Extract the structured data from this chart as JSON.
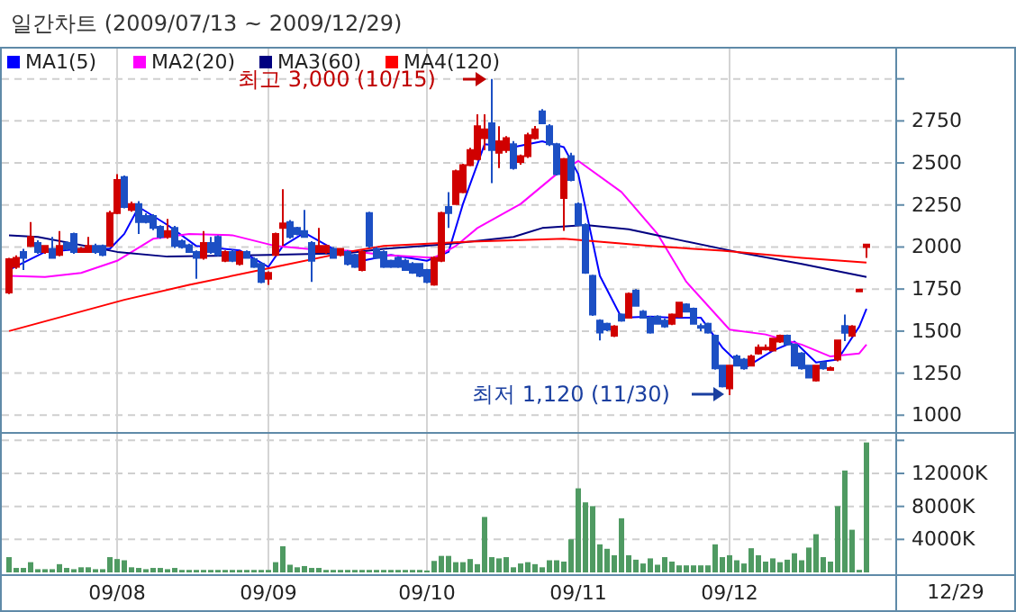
{
  "chart_data": [
    {
      "type": "candlestick",
      "title": "일간차트 (2009/07/13 ~ 2009/12/29)",
      "categories": [
        null,
        null,
        null,
        null,
        null,
        null,
        null,
        null,
        null,
        null,
        null,
        null,
        null,
        null,
        null,
        null,
        null,
        null,
        null,
        null,
        null,
        null,
        null,
        null,
        null,
        null,
        null,
        null,
        null,
        null,
        null,
        null,
        null,
        null,
        null,
        null,
        null,
        null,
        null,
        null,
        null,
        null,
        null,
        null,
        null,
        null,
        null,
        null,
        null,
        null,
        null,
        null,
        null,
        null,
        null,
        null,
        null,
        null,
        null,
        null,
        null,
        null,
        null,
        null,
        null,
        null,
        null,
        null,
        null,
        null,
        null,
        null,
        null,
        null,
        null,
        null,
        null,
        null,
        null,
        null,
        null,
        null,
        null,
        null,
        null,
        null,
        null,
        null,
        null,
        null,
        null,
        null,
        null,
        null,
        null,
        null,
        null,
        null,
        null,
        null,
        null,
        null,
        null,
        null,
        null,
        null,
        null,
        null,
        null,
        null,
        null,
        null,
        null,
        null,
        null,
        null,
        null,
        null,
        null,
        null
      ],
      "ohlc": [
        [
          1730,
          1935,
          1720,
          1928
        ],
        [
          1882,
          1950,
          1870,
          1935
        ],
        [
          1971,
          1989,
          1864,
          1935
        ],
        [
          2006,
          2149,
          2000,
          2060
        ],
        [
          2024,
          2040,
          1960,
          1971
        ],
        [
          1971,
          2010,
          1960,
          2006
        ],
        [
          1989,
          2060,
          1930,
          1935
        ],
        [
          1953,
          2095,
          1945,
          2006
        ],
        [
          2024,
          2035,
          1980,
          1989
        ],
        [
          2078,
          2085,
          1960,
          1971
        ],
        [
          1971,
          2000,
          1965,
          1989
        ],
        [
          1971,
          2060,
          1965,
          2006
        ],
        [
          2006,
          2020,
          1960,
          1971
        ],
        [
          2006,
          2015,
          1945,
          1953
        ],
        [
          2006,
          2215,
          2000,
          2202
        ],
        [
          2202,
          2433,
          2195,
          2398
        ],
        [
          2416,
          2425,
          2230,
          2238
        ],
        [
          2220,
          2270,
          2210,
          2255
        ],
        [
          2255,
          2273,
          2078,
          2149
        ],
        [
          2184,
          2200,
          2140,
          2149
        ],
        [
          2184,
          2195,
          2100,
          2113
        ],
        [
          2120,
          2130,
          2050,
          2060
        ],
        [
          2060,
          2167,
          2050,
          2095
        ],
        [
          2113,
          2125,
          1995,
          2006
        ],
        [
          2035,
          2045,
          1990,
          2000
        ],
        [
          2010,
          2020,
          1965,
          1971
        ],
        [
          1971,
          1980,
          1811,
          1935
        ],
        [
          1935,
          2095,
          1925,
          2024
        ],
        [
          2024,
          2060,
          1960,
          1971
        ],
        [
          2060,
          2070,
          1945,
          1953
        ],
        [
          1918,
          1980,
          1910,
          1971
        ],
        [
          1971,
          1985,
          1910,
          1918
        ],
        [
          1900,
          1980,
          1890,
          1971
        ],
        [
          1971,
          1980,
          1930,
          1935
        ],
        [
          1928,
          1940,
          1875,
          1882
        ],
        [
          1900,
          1910,
          1785,
          1793
        ],
        [
          1811,
          1855,
          1775,
          1846
        ],
        [
          1953,
          2085,
          1945,
          2078
        ],
        [
          2113,
          2344,
          2006,
          2140
        ],
        [
          2149,
          2160,
          2050,
          2060
        ],
        [
          2113,
          2120,
          2070,
          2078
        ],
        [
          2095,
          2220,
          2055,
          2060
        ],
        [
          2024,
          2035,
          1793,
          1918
        ],
        [
          1971,
          2113,
          1965,
          2006
        ],
        [
          1971,
          2015,
          1960,
          2006
        ],
        [
          1989,
          2000,
          1930,
          1935
        ],
        [
          1953,
          1995,
          1945,
          1989
        ],
        [
          1971,
          1980,
          1890,
          1900
        ],
        [
          1953,
          1960,
          1875,
          1882
        ],
        [
          1864,
          1980,
          1855,
          1971
        ],
        [
          2202,
          2210,
          1995,
          2006
        ],
        [
          1989,
          2000,
          1930,
          1936
        ],
        [
          1971,
          1980,
          1875,
          1882
        ],
        [
          1918,
          1925,
          1875,
          1882
        ],
        [
          1936,
          1945,
          1875,
          1882
        ],
        [
          1918,
          1930,
          1860,
          1864
        ],
        [
          1900,
          1910,
          1840,
          1847
        ],
        [
          1900,
          1905,
          1820,
          1829
        ],
        [
          1864,
          1870,
          1785,
          1793
        ],
        [
          1776,
          1945,
          1770,
          1936
        ],
        [
          1918,
          2210,
          1910,
          2202
        ],
        [
          2238,
          2327,
          2113,
          2202
        ],
        [
          2256,
          2460,
          2250,
          2451
        ],
        [
          2327,
          2495,
          2320,
          2487
        ],
        [
          2487,
          2590,
          2480,
          2576
        ],
        [
          2523,
          2789,
          2515,
          2718
        ],
        [
          2647,
          2789,
          2576,
          2700
        ],
        [
          2736,
          3000,
          2380,
          2576
        ],
        [
          2560,
          2718,
          2469,
          2629
        ],
        [
          2576,
          2660,
          2560,
          2647
        ],
        [
          2611,
          2630,
          2460,
          2469
        ],
        [
          2505,
          2550,
          2490,
          2540
        ],
        [
          2540,
          2680,
          2530,
          2665
        ],
        [
          2647,
          2720,
          2640,
          2700
        ],
        [
          2807,
          2820,
          2730,
          2736
        ],
        [
          2718,
          2730,
          2600,
          2611
        ],
        [
          2611,
          2620,
          2425,
          2434
        ],
        [
          2291,
          2530,
          2096,
          2523
        ],
        [
          2540,
          2560,
          2390,
          2398
        ],
        [
          2256,
          2265,
          2125,
          2131
        ],
        [
          2131,
          2140,
          1840,
          1847
        ],
        [
          1829,
          1835,
          1590,
          1598
        ],
        [
          1562,
          1570,
          1445,
          1491
        ],
        [
          1544,
          1550,
          1500,
          1509
        ],
        [
          1473,
          1535,
          1465,
          1527
        ],
        [
          1598,
          1605,
          1555,
          1562
        ],
        [
          1580,
          1730,
          1575,
          1722
        ],
        [
          1740,
          1750,
          1645,
          1651
        ],
        [
          1616,
          1625,
          1575,
          1580
        ],
        [
          1580,
          1590,
          1485,
          1491
        ],
        [
          1587,
          1595,
          1540,
          1544
        ],
        [
          1562,
          1575,
          1520,
          1527
        ],
        [
          1544,
          1605,
          1535,
          1598
        ],
        [
          1587,
          1675,
          1580,
          1669
        ],
        [
          1658,
          1665,
          1610,
          1616
        ],
        [
          1633,
          1640,
          1540,
          1544
        ],
        [
          1530,
          1545,
          1500,
          1522
        ],
        [
          1544,
          1550,
          1485,
          1491
        ],
        [
          1473,
          1480,
          1270,
          1278
        ],
        [
          1295,
          1300,
          1165,
          1171
        ],
        [
          1160,
          1300,
          1120,
          1295
        ],
        [
          1349,
          1360,
          1290,
          1295
        ],
        [
          1331,
          1340,
          1270,
          1278
        ],
        [
          1295,
          1360,
          1290,
          1349
        ],
        [
          1367,
          1420,
          1360,
          1402
        ],
        [
          1395,
          1420,
          1385,
          1402
        ],
        [
          1384,
          1460,
          1380,
          1455
        ],
        [
          1438,
          1480,
          1430,
          1473
        ],
        [
          1473,
          1480,
          1415,
          1420
        ],
        [
          1420,
          1425,
          1290,
          1295
        ],
        [
          1367,
          1375,
          1270,
          1278
        ],
        [
          1295,
          1300,
          1220,
          1224
        ],
        [
          1207,
          1300,
          1200,
          1295
        ],
        [
          1313,
          1320,
          1270,
          1278
        ],
        [
          1270,
          1290,
          1265,
          1280
        ],
        [
          1331,
          1450,
          1320,
          1445
        ],
        [
          1530,
          1598,
          1440,
          1490
        ],
        [
          1473,
          1535,
          1465,
          1527
        ],
        [
          1740,
          1750,
          1740,
          1747
        ],
        [
          2000,
          2014,
          1936,
          2014
        ]
      ],
      "series": [
        {
          "type": "line",
          "name": "MA1(5)",
          "color": "#0000ff",
          "values": [
            1864,
            null,
            null,
            null,
            null,
            1971,
            null,
            null,
            null,
            null,
            1989,
            null,
            null,
            null,
            1989,
            null,
            2078,
            null,
            2238,
            null,
            null,
            null,
            2131,
            null,
            null,
            null,
            2006,
            null,
            null,
            null,
            null,
            null,
            1980,
            null,
            null,
            null,
            1882,
            null,
            2006,
            null,
            null,
            2085,
            null,
            null,
            null,
            1989,
            null,
            null,
            null,
            1918,
            null,
            null,
            null,
            1953,
            null,
            null,
            null,
            null,
            1918,
            null,
            null,
            1971,
            null,
            2256,
            null,
            null,
            2611,
            null,
            null,
            null,
            2594,
            null,
            null,
            null,
            2629,
            null,
            null,
            2594,
            null,
            2434,
            null,
            null,
            1829,
            null,
            null,
            1580,
            null,
            null,
            null,
            1587,
            null,
            null,
            1580,
            null,
            null,
            null,
            1580,
            null,
            null,
            1402,
            null,
            null,
            1278,
            null,
            null,
            null,
            1384,
            null,
            null,
            1438,
            null,
            null,
            1313,
            null,
            null,
            1331,
            null,
            null,
            1527,
            1633
          ]
        },
        {
          "type": "line",
          "name": "MA2(20)",
          "color": "#ff00ff",
          "values": [
            1829,
            null,
            null,
            null,
            null,
            1822,
            null,
            null,
            null,
            null,
            1846,
            null,
            null,
            null,
            null,
            1918,
            null,
            null,
            null,
            null,
            2049,
            null,
            null,
            null,
            null,
            2078,
            null,
            null,
            null,
            null,
            null,
            2070,
            null,
            null,
            null,
            null,
            null,
            2006,
            null,
            null,
            null,
            null,
            null,
            1982,
            null,
            null,
            null,
            1978,
            null,
            null,
            null,
            null,
            1953,
            null,
            null,
            null,
            null,
            null,
            null,
            1936,
            null,
            null,
            2006,
            null,
            null,
            2113,
            null,
            null,
            null,
            null,
            null,
            2256,
            null,
            null,
            null,
            null,
            2434,
            null,
            null,
            2512,
            null,
            null,
            null,
            null,
            null,
            2327,
            null,
            null,
            null,
            null,
            2078,
            null,
            null,
            null,
            1793,
            null,
            null,
            null,
            null,
            null,
            1509,
            null,
            null,
            null,
            null,
            1480,
            null,
            null,
            null,
            null,
            1420,
            null,
            null,
            null,
            1349,
            null,
            null,
            null,
            1367,
            1420
          ]
        },
        {
          "type": "line",
          "name": "MA3(60)",
          "color": "#000080",
          "values": [
            2070,
            null,
            null,
            null,
            2060,
            null,
            null,
            null,
            null,
            null,
            null,
            null,
            null,
            null,
            null,
            1971,
            null,
            null,
            null,
            null,
            null,
            null,
            1943,
            null,
            null,
            null,
            null,
            null,
            null,
            null,
            null,
            null,
            null,
            null,
            null,
            null,
            1953,
            null,
            null,
            null,
            null,
            null,
            null,
            null,
            null,
            null,
            null,
            1964,
            null,
            null,
            null,
            null,
            1989,
            null,
            null,
            null,
            null,
            null,
            null,
            null,
            2014,
            null,
            null,
            null,
            null,
            null,
            null,
            null,
            null,
            null,
            2060,
            null,
            null,
            null,
            2113,
            null,
            null,
            null,
            null,
            null,
            2131,
            null,
            null,
            null,
            null,
            null,
            2106,
            null,
            null,
            null,
            null,
            2060,
            null,
            2042,
            null,
            null,
            null,
            null,
            null,
            null,
            null,
            1971,
            null,
            null,
            null,
            null,
            null,
            null,
            null,
            null,
            1900,
            null,
            null,
            null,
            null,
            null,
            null,
            null,
            null,
            1822
          ]
        },
        {
          "type": "line",
          "name": "MA4(120)",
          "color": "#ff0000",
          "values": [
            1500,
            null,
            null,
            null,
            null,
            null,
            null,
            null,
            null,
            null,
            null,
            null,
            null,
            null,
            null,
            null,
            1686,
            null,
            null,
            null,
            null,
            null,
            null,
            null,
            null,
            1775,
            null,
            null,
            null,
            null,
            null,
            null,
            null,
            null,
            null,
            null,
            null,
            1882,
            null,
            null,
            null,
            null,
            null,
            null,
            null,
            null,
            null,
            1971,
            null,
            null,
            null,
            null,
            2006,
            null,
            null,
            null,
            null,
            null,
            null,
            null,
            null,
            null,
            null,
            null,
            2032,
            null,
            null,
            null,
            null,
            null,
            null,
            null,
            null,
            null,
            null,
            null,
            null,
            2049,
            null,
            null,
            null,
            null,
            null,
            null,
            null,
            null,
            null,
            null,
            null,
            2006,
            null,
            null,
            null,
            null,
            null,
            null,
            null,
            null,
            null,
            1978,
            null,
            null,
            null,
            null,
            null,
            null,
            null,
            null,
            null,
            null,
            1936,
            null,
            null,
            null,
            null,
            null,
            null,
            null,
            null,
            1907
          ]
        }
      ],
      "ylim": [
        900,
        3180
      ],
      "yticks": [
        {
          "value": 3000,
          "label": null
        },
        2750,
        2500,
        2250,
        2000,
        1750,
        1500,
        1250,
        1000
      ],
      "grid": true,
      "legend": "top left",
      "tick_labels": "y",
      "annotations": [
        "최고 3,000 (10/15)",
        "최저 1,120 (11/30)"
      ]
    },
    {
      "type": "bar",
      "categories": [
        null,
        null,
        null,
        null,
        null,
        null,
        null,
        null,
        null,
        null,
        null,
        null,
        null,
        null,
        null,
        "09/08",
        null,
        null,
        null,
        null,
        null,
        null,
        null,
        null,
        null,
        null,
        null,
        null,
        null,
        null,
        null,
        null,
        null,
        null,
        null,
        null,
        "09/09",
        null,
        null,
        null,
        null,
        null,
        null,
        null,
        null,
        null,
        null,
        null,
        null,
        null,
        null,
        null,
        null,
        null,
        null,
        null,
        null,
        null,
        "09/10",
        null,
        null,
        null,
        null,
        null,
        null,
        null,
        null,
        null,
        null,
        null,
        null,
        null,
        null,
        null,
        null,
        null,
        null,
        null,
        null,
        "09/11",
        null,
        null,
        null,
        null,
        null,
        null,
        null,
        null,
        null,
        null,
        null,
        null,
        null,
        null,
        null,
        null,
        null,
        null,
        null,
        null,
        "09/12",
        null,
        null,
        null,
        null,
        null,
        null,
        null,
        null,
        null,
        null,
        null,
        null,
        null,
        null,
        null,
        null,
        null,
        null,
        null
      ],
      "values": [
        1850,
        540,
        540,
        1240,
        390,
        390,
        390,
        1000,
        540,
        390,
        620,
        620,
        390,
        390,
        1850,
        1620,
        1470,
        620,
        540,
        390,
        540,
        540,
        390,
        540,
        300,
        300,
        300,
        300,
        300,
        300,
        300,
        300,
        300,
        300,
        300,
        300,
        300,
        1240,
        3170,
        930,
        620,
        770,
        540,
        540,
        300,
        300,
        300,
        300,
        300,
        300,
        300,
        300,
        300,
        300,
        300,
        300,
        300,
        300,
        230,
        1390,
        2000,
        2000,
        1240,
        1240,
        1620,
        1000,
        6720,
        1850,
        1700,
        1850,
        620,
        1080,
        1240,
        1000,
        620,
        1470,
        1470,
        1310,
        4010,
        10190,
        8490,
        8030,
        3400,
        2860,
        2080,
        6560,
        2080,
        1540,
        1080,
        1700,
        930,
        1850,
        1310,
        850,
        850,
        850,
        850,
        850,
        3400,
        1850,
        2080,
        1470,
        1080,
        2930,
        2080,
        1310,
        1700,
        1240,
        1540,
        2320,
        1470,
        3010,
        4630,
        1850,
        1310,
        8030,
        12350,
        5170,
        310,
        15750
      ],
      "color": "#4f9a62",
      "ylim": [
        0,
        16800
      ],
      "yticks": [
        {
          "value": 4000,
          "label": "4000K"
        },
        {
          "value": 8000,
          "label": "8000K"
        },
        {
          "value": 12000,
          "label": "12000K"
        },
        {
          "value": 16000,
          "label": null
        }
      ],
      "grid": true,
      "annotations": [
        "12/29"
      ]
    }
  ]
}
